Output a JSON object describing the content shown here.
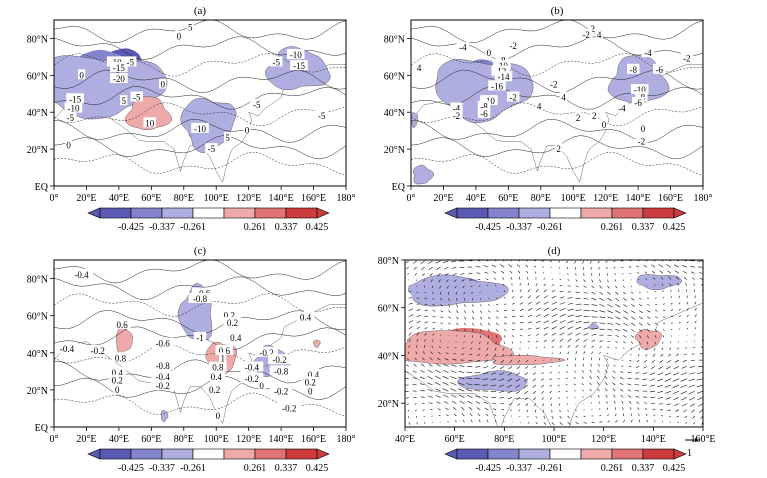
{
  "chart_data": [
    {
      "type": "contour",
      "panel_label": "(a)",
      "x_ticks": [
        "0°",
        "20°E",
        "40°E",
        "60°E",
        "80°E",
        "100°E",
        "120°E",
        "140°E",
        "160°E",
        "180°"
      ],
      "y_ticks": [
        "EQ",
        "20°N",
        "40°N",
        "60°N",
        "80°N"
      ],
      "xlim": [
        0,
        180
      ],
      "ylim": [
        0,
        90
      ],
      "contour_labels": [
        {
          "lon": 84,
          "lat": 86,
          "text": "5"
        },
        {
          "lon": 77,
          "lat": 81,
          "text": "0"
        },
        {
          "lon": 38,
          "lat": 67,
          "text": "-10"
        },
        {
          "lon": 40,
          "lat": 64,
          "text": "-15"
        },
        {
          "lon": 40,
          "lat": 58,
          "text": "-20"
        },
        {
          "lon": 47,
          "lat": 67,
          "text": "-5"
        },
        {
          "lon": 17,
          "lat": 60,
          "text": "0"
        },
        {
          "lon": 13,
          "lat": 47,
          "text": "-15"
        },
        {
          "lon": 12,
          "lat": 42,
          "text": "-10"
        },
        {
          "lon": 10,
          "lat": 37,
          "text": "-5"
        },
        {
          "lon": 43,
          "lat": 46,
          "text": "5"
        },
        {
          "lon": 51,
          "lat": 48,
          "text": "-5"
        },
        {
          "lon": 59,
          "lat": 34,
          "text": "10"
        },
        {
          "lon": 67,
          "lat": 55,
          "text": "0"
        },
        {
          "lon": 90,
          "lat": 31,
          "text": "-10"
        },
        {
          "lon": 97,
          "lat": 20,
          "text": "-5"
        },
        {
          "lon": 107,
          "lat": 26,
          "text": "5"
        },
        {
          "lon": 119,
          "lat": 30,
          "text": "0"
        },
        {
          "lon": 125,
          "lat": 44,
          "text": "-5"
        },
        {
          "lon": 149,
          "lat": 71,
          "text": "-10"
        },
        {
          "lon": 151,
          "lat": 65,
          "text": "-15"
        },
        {
          "lon": 137,
          "lat": 67,
          "text": "-5"
        },
        {
          "lon": 165,
          "lat": 38,
          "text": "-5"
        },
        {
          "lon": 9,
          "lat": 22,
          "text": "0"
        }
      ],
      "shaded": [
        {
          "sign": -1,
          "level": 3,
          "lon": 41,
          "lat": 62,
          "rx": 21,
          "ry": 11
        },
        {
          "sign": -1,
          "level": 2,
          "lon": 34,
          "lat": 59,
          "rx": 30,
          "ry": 13
        },
        {
          "sign": -1,
          "level": 1,
          "lon": 28,
          "lat": 55,
          "rx": 40,
          "ry": 16
        },
        {
          "sign": 1,
          "level": 3,
          "lon": 58,
          "lat": 39,
          "rx": 7,
          "ry": 5
        },
        {
          "sign": 1,
          "level": 2,
          "lon": 58,
          "lat": 39,
          "rx": 10,
          "ry": 7
        },
        {
          "sign": 1,
          "level": 1,
          "lon": 58,
          "lat": 39,
          "rx": 13,
          "ry": 9
        },
        {
          "sign": -1,
          "level": 2,
          "lon": 92,
          "lat": 33,
          "rx": 10,
          "ry": 8
        },
        {
          "sign": -1,
          "level": 1,
          "lon": 95,
          "lat": 34,
          "rx": 16,
          "ry": 14
        },
        {
          "sign": -1,
          "level": 3,
          "lon": 148,
          "lat": 65,
          "rx": 8,
          "ry": 5
        },
        {
          "sign": -1,
          "level": 2,
          "lon": 148,
          "lat": 64,
          "rx": 13,
          "ry": 8
        },
        {
          "sign": -1,
          "level": 1,
          "lon": 150,
          "lat": 63,
          "rx": 19,
          "ry": 11
        }
      ]
    },
    {
      "type": "contour",
      "panel_label": "(b)",
      "x_ticks": [
        "0°",
        "20°E",
        "40°E",
        "60°E",
        "80°E",
        "100°E",
        "120°E",
        "140°E",
        "160°E",
        "180°"
      ],
      "y_ticks": [
        "EQ",
        "20°N",
        "40°N",
        "60°N",
        "80°N"
      ],
      "xlim": [
        0,
        180
      ],
      "ylim": [
        0,
        90
      ],
      "contour_labels": [
        {
          "lon": 112,
          "lat": 85,
          "text": "2"
        },
        {
          "lon": 116,
          "lat": 82,
          "text": "4"
        },
        {
          "lon": 108,
          "lat": 82,
          "text": "-2"
        },
        {
          "lon": 32,
          "lat": 75,
          "text": "-4"
        },
        {
          "lon": 63,
          "lat": 76,
          "text": "-2"
        },
        {
          "lon": 48,
          "lat": 72,
          "text": "0"
        },
        {
          "lon": 5,
          "lat": 64,
          "text": "4"
        },
        {
          "lon": 56,
          "lat": 68,
          "text": "-8"
        },
        {
          "lon": 56,
          "lat": 65,
          "text": "-10"
        },
        {
          "lon": 55,
          "lat": 62,
          "text": "-12"
        },
        {
          "lon": 57,
          "lat": 59,
          "text": "-14"
        },
        {
          "lon": 53,
          "lat": 54,
          "text": "-16"
        },
        {
          "lon": 48,
          "lat": 46,
          "text": "-10"
        },
        {
          "lon": 45,
          "lat": 43,
          "text": "-8"
        },
        {
          "lon": 45,
          "lat": 39,
          "text": "-6"
        },
        {
          "lon": 28,
          "lat": 42,
          "text": "-4"
        },
        {
          "lon": 28,
          "lat": 38,
          "text": "-2"
        },
        {
          "lon": 63,
          "lat": 48,
          "text": "-2"
        },
        {
          "lon": 88,
          "lat": 55,
          "text": "-2"
        },
        {
          "lon": 79,
          "lat": 43,
          "text": "4"
        },
        {
          "lon": 94,
          "lat": 48,
          "text": "4"
        },
        {
          "lon": 103,
          "lat": 37,
          "text": "2"
        },
        {
          "lon": 113,
          "lat": 38,
          "text": "2"
        },
        {
          "lon": 91,
          "lat": 20,
          "text": "2"
        },
        {
          "lon": 119,
          "lat": 33,
          "text": "0"
        },
        {
          "lon": 146,
          "lat": 72,
          "text": "-4"
        },
        {
          "lon": 137,
          "lat": 63,
          "text": "-8"
        },
        {
          "lon": 153,
          "lat": 63,
          "text": "-6"
        },
        {
          "lon": 141,
          "lat": 52,
          "text": "-10"
        },
        {
          "lon": 142,
          "lat": 48,
          "text": "-8"
        },
        {
          "lon": 140,
          "lat": 45,
          "text": "-6"
        },
        {
          "lon": 130,
          "lat": 42,
          "text": "-4"
        },
        {
          "lon": 170,
          "lat": 69,
          "text": "-2"
        },
        {
          "lon": 143,
          "lat": 31,
          "text": "0"
        },
        {
          "lon": 142,
          "lat": 24,
          "text": "-2"
        }
      ],
      "shaded": [
        {
          "sign": -1,
          "level": 3,
          "lon": 51,
          "lat": 55,
          "rx": 16,
          "ry": 9
        },
        {
          "sign": -1,
          "level": 2,
          "lon": 48,
          "lat": 54,
          "rx": 24,
          "ry": 13
        },
        {
          "sign": -1,
          "level": 1,
          "lon": 44,
          "lat": 53,
          "rx": 30,
          "ry": 16
        },
        {
          "sign": -1,
          "level": 3,
          "lon": 143,
          "lat": 58,
          "rx": 7,
          "ry": 7
        },
        {
          "sign": -1,
          "level": 2,
          "lon": 141,
          "lat": 57,
          "rx": 12,
          "ry": 10
        },
        {
          "sign": -1,
          "level": 1,
          "lon": 140,
          "lat": 57,
          "rx": 17,
          "ry": 13
        },
        {
          "sign": -1,
          "level": 1,
          "lon": 7,
          "lat": 6,
          "rx": 6,
          "ry": 5
        },
        {
          "sign": -1,
          "level": 1,
          "lon": 2,
          "lat": 36,
          "rx": 2,
          "ry": 4
        }
      ]
    },
    {
      "type": "contour",
      "panel_label": "(c)",
      "x_ticks": [
        "0°",
        "20°E",
        "40°E",
        "60°E",
        "80°E",
        "100°E",
        "120°E",
        "140°E",
        "160°E",
        "180°"
      ],
      "y_ticks": [
        "EQ",
        "20°N",
        "40°N",
        "60°N",
        "80°N"
      ],
      "xlim": [
        0,
        180
      ],
      "ylim": [
        0,
        90
      ],
      "contour_labels": [
        {
          "lon": 17,
          "lat": 82,
          "text": "-0.4"
        },
        {
          "lon": 42,
          "lat": 55,
          "text": "0.6"
        },
        {
          "lon": 8,
          "lat": 42,
          "text": "-0.4"
        },
        {
          "lon": 27,
          "lat": 41,
          "text": "-0.2"
        },
        {
          "lon": 41,
          "lat": 37,
          "text": "0.8"
        },
        {
          "lon": 67,
          "lat": 45,
          "text": "-0.6"
        },
        {
          "lon": 92,
          "lat": 72,
          "text": "-0.6"
        },
        {
          "lon": 90,
          "lat": 69,
          "text": "-0.8"
        },
        {
          "lon": 90,
          "lat": 48,
          "text": "-1"
        },
        {
          "lon": 108,
          "lat": 60,
          "text": "0.2"
        },
        {
          "lon": 110,
          "lat": 56,
          "text": "0.2"
        },
        {
          "lon": 112,
          "lat": 48,
          "text": "0.4"
        },
        {
          "lon": 105,
          "lat": 41,
          "text": "0.6"
        },
        {
          "lon": 104,
          "lat": 37,
          "text": "1"
        },
        {
          "lon": 101,
          "lat": 32,
          "text": "0.8"
        },
        {
          "lon": 100,
          "lat": 27,
          "text": "0.4"
        },
        {
          "lon": 99,
          "lat": 20,
          "text": "0.2"
        },
        {
          "lon": 67,
          "lat": 33,
          "text": "-0.8"
        },
        {
          "lon": 67,
          "lat": 27,
          "text": "-0.4"
        },
        {
          "lon": 67,
          "lat": 22,
          "text": "-0.2"
        },
        {
          "lon": 39,
          "lat": 29,
          "text": "0.4"
        },
        {
          "lon": 39,
          "lat": 25,
          "text": "0.2"
        },
        {
          "lon": 39,
          "lat": 20,
          "text": "0"
        },
        {
          "lon": 131,
          "lat": 40,
          "text": "-0.2"
        },
        {
          "lon": 139,
          "lat": 36,
          "text": "-0.2"
        },
        {
          "lon": 140,
          "lat": 30,
          "text": "-0.8"
        },
        {
          "lon": 122,
          "lat": 32,
          "text": "-0.4"
        },
        {
          "lon": 122,
          "lat": 26,
          "text": "-0.2"
        },
        {
          "lon": 128,
          "lat": 22,
          "text": "0"
        },
        {
          "lon": 140,
          "lat": 19,
          "text": "-0.2"
        },
        {
          "lon": 145,
          "lat": 10,
          "text": "-0.2"
        },
        {
          "lon": 155,
          "lat": 59,
          "text": "0.4"
        },
        {
          "lon": 160,
          "lat": 28,
          "text": "0.4"
        },
        {
          "lon": 158,
          "lat": 24,
          "text": "0.2"
        },
        {
          "lon": 158,
          "lat": 19,
          "text": "0"
        },
        {
          "lon": 101,
          "lat": 6,
          "text": "0"
        }
      ],
      "shaded": [
        {
          "sign": 1,
          "level": 2,
          "lon": 43,
          "lat": 47,
          "rx": 3,
          "ry": 5
        },
        {
          "sign": 1,
          "level": 1,
          "lon": 43,
          "lat": 47,
          "rx": 5,
          "ry": 7
        },
        {
          "sign": -1,
          "level": 3,
          "lon": 88,
          "lat": 57,
          "rx": 5,
          "ry": 8
        },
        {
          "sign": -1,
          "level": 2,
          "lon": 88,
          "lat": 59,
          "rx": 7,
          "ry": 11
        },
        {
          "sign": -1,
          "level": 1,
          "lon": 88,
          "lat": 61,
          "rx": 10,
          "ry": 15
        },
        {
          "sign": 1,
          "level": 3,
          "lon": 103,
          "lat": 36,
          "rx": 5,
          "ry": 5
        },
        {
          "sign": 1,
          "level": 2,
          "lon": 103,
          "lat": 37,
          "rx": 7,
          "ry": 7
        },
        {
          "sign": 1,
          "level": 1,
          "lon": 103,
          "lat": 37,
          "rx": 9,
          "ry": 9
        },
        {
          "sign": -1,
          "level": 3,
          "lon": 136,
          "lat": 33,
          "rx": 5,
          "ry": 4
        },
        {
          "sign": -1,
          "level": 2,
          "lon": 135,
          "lat": 34,
          "rx": 8,
          "ry": 6
        },
        {
          "sign": -1,
          "level": 1,
          "lon": 134,
          "lat": 35,
          "rx": 11,
          "ry": 8
        },
        {
          "sign": -1,
          "level": 1,
          "lon": 68,
          "lat": 6,
          "rx": 2,
          "ry": 3
        },
        {
          "sign": 1,
          "level": 1,
          "lon": 162,
          "lat": 45,
          "rx": 2,
          "ry": 2
        }
      ]
    },
    {
      "type": "vector",
      "panel_label": "(d)",
      "x_ticks": [
        "40°E",
        "60°E",
        "80°E",
        "100°E",
        "120°E",
        "140°E",
        "160°E"
      ],
      "y_ticks": [
        "20°N",
        "40°N",
        "60°N",
        "80°N"
      ],
      "xlim": [
        40,
        160
      ],
      "ylim": [
        10,
        80
      ],
      "reference_vector": "1",
      "shaded": [
        {
          "sign": -1,
          "level": 2,
          "lon": 62,
          "lat": 68,
          "rx": 13,
          "ry": 4
        },
        {
          "sign": -1,
          "level": 1,
          "lon": 60,
          "lat": 67,
          "rx": 20,
          "ry": 6
        },
        {
          "sign": -1,
          "level": 1,
          "lon": 142,
          "lat": 71,
          "rx": 9,
          "ry": 3
        },
        {
          "sign": 1,
          "level": 3,
          "lon": 66,
          "lat": 46,
          "rx": 10,
          "ry": 4
        },
        {
          "sign": 1,
          "level": 2,
          "lon": 64,
          "lat": 45,
          "rx": 17,
          "ry": 6
        },
        {
          "sign": 1,
          "level": 1,
          "lon": 58,
          "lat": 43,
          "rx": 23,
          "ry": 7
        },
        {
          "sign": 1,
          "level": 1,
          "lon": 88,
          "lat": 38,
          "rx": 14,
          "ry": 2
        },
        {
          "sign": 1,
          "level": 1,
          "lon": 138,
          "lat": 47,
          "rx": 5,
          "ry": 4
        },
        {
          "sign": -1,
          "level": 2,
          "lon": 76,
          "lat": 29,
          "rx": 9,
          "ry": 3
        },
        {
          "sign": -1,
          "level": 1,
          "lon": 76,
          "lat": 29,
          "rx": 14,
          "ry": 4
        },
        {
          "sign": -1,
          "level": 1,
          "lon": 116,
          "lat": 52,
          "rx": 2,
          "ry": 1
        }
      ]
    }
  ],
  "colorbar": {
    "labels": [
      "-0.425",
      "-0.337",
      "-0.261",
      "0.261",
      "0.337",
      "0.425"
    ],
    "colors": [
      "#5a5ab4",
      "#8484cc",
      "#aeaee0",
      "#ffffff",
      "#eeaaaa",
      "#e07474",
      "#cc3c3c"
    ]
  }
}
